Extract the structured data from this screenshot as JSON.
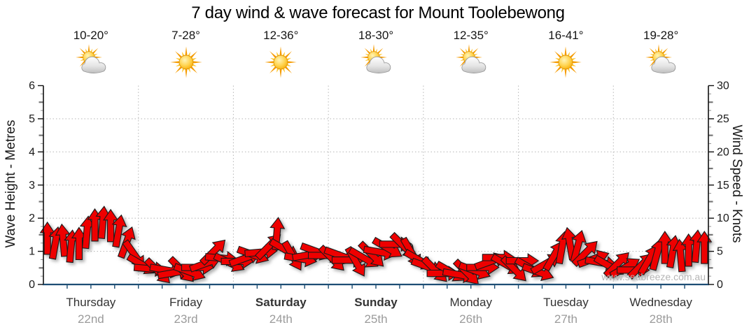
{
  "title": "7 day wind & wave forecast for Mount Toolebewong",
  "watermark": "www.seabreeze.com.au",
  "axes": {
    "left_label": "Wave Height - Metres",
    "right_label": "Wind Speed - Knots"
  },
  "colors": {
    "arrow_fill": "#ee0000",
    "arrow_stroke": "#1a1a1a",
    "bottom_axis": "#1d4e74",
    "grid": "#bdbdbd",
    "axis_line": "#111111",
    "tick_text": "#1a1a1a",
    "day_name": "#333333",
    "date_gray": "#9b9b9b",
    "temp_text": "#151515",
    "watermark": "#b5b5b5"
  },
  "days": [
    {
      "name": "Thursday",
      "date": "22nd",
      "temp": "10-20°",
      "icon": "sun-cloud",
      "bold": false
    },
    {
      "name": "Friday",
      "date": "23rd",
      "temp": "7-28°",
      "icon": "sun",
      "bold": false
    },
    {
      "name": "Saturday",
      "date": "24th",
      "temp": "12-36°",
      "icon": "sun",
      "bold": true
    },
    {
      "name": "Sunday",
      "date": "25th",
      "temp": "18-30°",
      "icon": "sun-cloud",
      "bold": true
    },
    {
      "name": "Monday",
      "date": "26th",
      "temp": "12-35°",
      "icon": "sun-cloud",
      "bold": false
    },
    {
      "name": "Tuesday",
      "date": "27th",
      "temp": "16-41°",
      "icon": "sun",
      "bold": false
    },
    {
      "name": "Wednesday",
      "date": "28th",
      "temp": "19-28°",
      "icon": "sun-cloud",
      "bold": false
    }
  ],
  "chart_data": {
    "type": "area",
    "subtype": "wind-direction-arrows",
    "title": "7 day wind & wave forecast for Mount Toolebewong",
    "left_axis": {
      "label": "Wave Height - Metres",
      "range": [
        0,
        6
      ],
      "ticks": [
        0,
        1,
        2,
        3,
        4,
        5,
        6
      ]
    },
    "right_axis": {
      "label": "Wind Speed - Knots",
      "range": [
        0,
        30
      ],
      "ticks": [
        0,
        5,
        10,
        15,
        20,
        25,
        30
      ]
    },
    "grid": {
      "horizontal_dotted_at_metres": [
        1,
        2,
        3,
        4,
        5
      ],
      "vertical_dotted_at_day_boundaries": true
    },
    "days": [
      "Thursday 22nd",
      "Friday 23rd",
      "Saturday 24th",
      "Sunday 25th",
      "Monday 26th",
      "Tuesday 27th",
      "Wednesday 28th"
    ],
    "temperatures": [
      "10-20°",
      "7-28°",
      "12-36°",
      "18-30°",
      "12-35°",
      "16-41°",
      "19-28°"
    ],
    "weather_icons": [
      "sun-cloud",
      "sun",
      "sun",
      "sun-cloud",
      "sun-cloud",
      "sun",
      "sun-cloud"
    ],
    "wind_units": "knots",
    "wind_samples_per_day": 12,
    "wind_points": [
      [
        9.4,
        0
      ],
      [
        8.7,
        10
      ],
      [
        9.1,
        355
      ],
      [
        8.2,
        5
      ],
      [
        8.6,
        0
      ],
      [
        10.3,
        5
      ],
      [
        11.4,
        0
      ],
      [
        11.8,
        5
      ],
      [
        11.3,
        0
      ],
      [
        10.5,
        10
      ],
      [
        8.8,
        20
      ],
      [
        6.9,
        145
      ],
      [
        5.4,
        120
      ],
      [
        4.8,
        95
      ],
      [
        4.4,
        135
      ],
      [
        4.6,
        100
      ],
      [
        4.2,
        80
      ],
      [
        4.6,
        135
      ],
      [
        4.3,
        110
      ],
      [
        5.0,
        90
      ],
      [
        5.6,
        70
      ],
      [
        7.4,
        45
      ],
      [
        6.4,
        95
      ],
      [
        5.7,
        115
      ],
      [
        5.9,
        90
      ],
      [
        6.4,
        70
      ],
      [
        6.9,
        110
      ],
      [
        7.3,
        85
      ],
      [
        8.2,
        45
      ],
      [
        10.1,
        5
      ],
      [
        7.7,
        120
      ],
      [
        6.7,
        150
      ],
      [
        6.3,
        100
      ],
      [
        6.9,
        80
      ],
      [
        7.4,
        110
      ],
      [
        6.8,
        90
      ],
      [
        6.3,
        135
      ],
      [
        6.8,
        110
      ],
      [
        6.1,
        90
      ],
      [
        5.8,
        150
      ],
      [
        6.4,
        120
      ],
      [
        6.9,
        135
      ],
      [
        7.3,
        100
      ],
      [
        7.9,
        120
      ],
      [
        8.5,
        90
      ],
      [
        8.2,
        135
      ],
      [
        7.2,
        150
      ],
      [
        6.1,
        120
      ],
      [
        5.1,
        110
      ],
      [
        4.6,
        135
      ],
      [
        4.1,
        90
      ],
      [
        4.3,
        120
      ],
      [
        3.9,
        100
      ],
      [
        4.2,
        135
      ],
      [
        4.5,
        110
      ],
      [
        5.0,
        90
      ],
      [
        5.9,
        70
      ],
      [
        6.5,
        90
      ],
      [
        5.4,
        120
      ],
      [
        4.7,
        135
      ],
      [
        6.0,
        90
      ],
      [
        4.9,
        120
      ],
      [
        4.3,
        110
      ],
      [
        5.6,
        60
      ],
      [
        6.8,
        30
      ],
      [
        8.0,
        10
      ],
      [
        8.6,
        350
      ],
      [
        8.2,
        15
      ],
      [
        7.2,
        45
      ],
      [
        6.3,
        70
      ],
      [
        5.7,
        100
      ],
      [
        5.2,
        120
      ],
      [
        5.5,
        45
      ],
      [
        5.0,
        60
      ],
      [
        4.6,
        90
      ],
      [
        5.3,
        45
      ],
      [
        6.2,
        30
      ],
      [
        7.0,
        15
      ],
      [
        8.0,
        0
      ],
      [
        7.4,
        10
      ],
      [
        6.8,
        355
      ],
      [
        7.6,
        0
      ],
      [
        8.2,
        5
      ],
      [
        8.0,
        0
      ]
    ]
  }
}
